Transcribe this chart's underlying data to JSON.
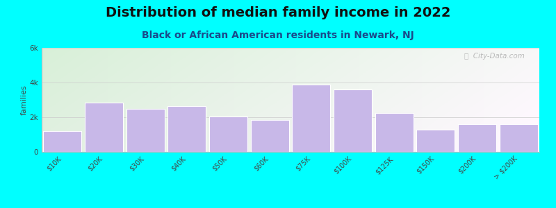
{
  "title": "Distribution of median family income in 2022",
  "subtitle": "Black or African American residents in Newark, NJ",
  "categories": [
    "$10K",
    "$20K",
    "$30K",
    "$40K",
    "$50K",
    "$60K",
    "$75K",
    "$100K",
    "$125K",
    "$150K",
    "$200K",
    "> $200K"
  ],
  "values": [
    1200,
    2850,
    2500,
    2650,
    2050,
    1850,
    3900,
    3600,
    2250,
    1300,
    1600,
    1600
  ],
  "bar_color": "#c8b8e8",
  "bar_edge_color": "#ffffff",
  "background_color": "#00ffff",
  "title_color": "#111111",
  "subtitle_color": "#1a4a8a",
  "ylabel": "families",
  "ylim": [
    0,
    6000
  ],
  "yticks": [
    0,
    2000,
    4000,
    6000
  ],
  "ytick_labels": [
    "0",
    "2k",
    "4k",
    "6k"
  ],
  "watermark": "ⓘ  City-Data.com",
  "title_fontsize": 14,
  "subtitle_fontsize": 10,
  "ylabel_fontsize": 8,
  "tick_fontsize": 7
}
